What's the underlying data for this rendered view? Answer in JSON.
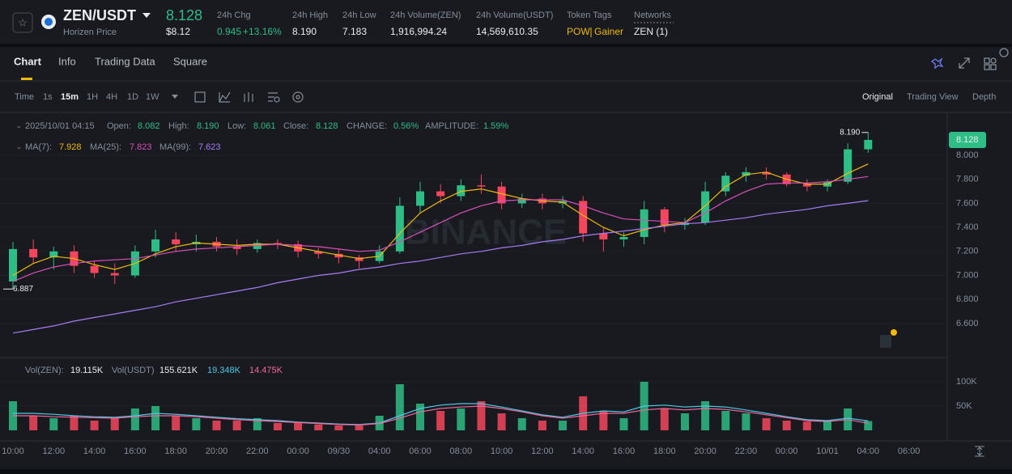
{
  "header": {
    "symbol": "ZEN/USDT",
    "price": "8.128",
    "name": "Horizen Price",
    "price_usd": "$8.12",
    "stats": [
      {
        "label": "24h Chg",
        "value": "0.945",
        "change": "+13.16%"
      },
      {
        "label": "24h High",
        "value": "8.190"
      },
      {
        "label": "24h Low",
        "value": "7.183"
      },
      {
        "label": "24h Volume(ZEN)",
        "value": "1,916,994.24"
      },
      {
        "label": "24h Volume(USDT)",
        "value": "14,569,610.35"
      }
    ],
    "token_tags": {
      "label": "Token Tags",
      "tags": [
        "POW",
        "Gainer"
      ]
    },
    "networks": {
      "label": "Networks",
      "value": "ZEN (1)"
    }
  },
  "tabs": [
    "Chart",
    "Info",
    "Trading Data",
    "Square"
  ],
  "intervals": [
    "Time",
    "1s",
    "15m",
    "1H",
    "4H",
    "1D",
    "1W"
  ],
  "views": [
    "Original",
    "Trading View",
    "Depth"
  ],
  "info": {
    "date": "2025/10/01 04:15",
    "items": [
      {
        "label": "Open:",
        "value": "8.082"
      },
      {
        "label": "High:",
        "value": "8.190"
      },
      {
        "label": "Low:",
        "value": "8.061"
      },
      {
        "label": "Close:",
        "value": "8.128"
      },
      {
        "label": "CHANGE:",
        "value": "0.56%"
      },
      {
        "label": "AMPLITUDE:",
        "value": "1.59%"
      }
    ]
  },
  "chart_data": [
    {
      "type": "candlestick",
      "watermark": "BINANCE",
      "up_color": "#2ebd85",
      "down_color": "#f6465d",
      "current_price_label": "8.128",
      "annotations": [
        "8.190",
        "6.887"
      ],
      "ylim": [
        6.317,
        8.35
      ],
      "yticks": [
        {
          "value": 6.6,
          "label": "6.600"
        },
        {
          "value": 6.8,
          "label": "6.800"
        },
        {
          "value": 7.0,
          "label": "7.000"
        },
        {
          "value": 7.2,
          "label": "7.200"
        },
        {
          "value": 7.4,
          "label": "7.400"
        },
        {
          "value": 7.6,
          "label": "7.600"
        },
        {
          "value": 7.8,
          "label": "7.800"
        },
        {
          "value": 8.0,
          "label": "8.000"
        }
      ],
      "open": [
        6.95,
        7.22,
        7.15,
        7.2,
        7.08,
        7.02,
        7.0,
        7.2,
        7.3,
        7.26,
        7.28,
        7.24,
        7.22,
        7.27,
        7.26,
        7.2,
        7.18,
        7.15,
        7.12,
        7.2,
        7.58,
        7.7,
        7.66,
        7.75,
        7.74,
        7.6,
        7.64,
        7.6,
        7.62,
        7.35,
        7.3,
        7.32,
        7.55,
        7.42,
        7.44,
        7.7,
        7.83,
        7.86,
        7.84,
        7.76,
        7.74,
        7.78,
        8.05,
        null,
        null
      ],
      "high": [
        7.28,
        7.3,
        7.24,
        7.25,
        7.12,
        7.1,
        7.25,
        7.38,
        7.36,
        7.34,
        7.32,
        7.3,
        7.3,
        7.3,
        7.29,
        7.23,
        7.22,
        7.17,
        7.25,
        7.65,
        7.78,
        7.76,
        7.8,
        7.84,
        7.78,
        7.68,
        7.68,
        7.66,
        7.66,
        7.4,
        7.36,
        7.62,
        7.57,
        7.48,
        7.78,
        7.86,
        7.9,
        7.9,
        7.86,
        7.8,
        7.8,
        8.1,
        8.19,
        null,
        null
      ],
      "low": [
        6.887,
        7.1,
        7.05,
        7.02,
        6.98,
        6.93,
        6.98,
        7.15,
        7.2,
        7.2,
        7.2,
        7.17,
        7.19,
        7.22,
        7.15,
        7.14,
        7.1,
        7.06,
        7.1,
        7.18,
        7.52,
        7.6,
        7.62,
        7.68,
        7.55,
        7.56,
        7.55,
        7.56,
        7.28,
        7.2,
        7.24,
        7.26,
        7.36,
        7.38,
        7.42,
        7.66,
        7.78,
        7.8,
        7.74,
        7.7,
        7.7,
        7.76,
        8.02,
        null,
        null
      ],
      "close": [
        7.22,
        7.15,
        7.2,
        7.08,
        7.02,
        7.0,
        7.2,
        7.3,
        7.26,
        7.28,
        7.24,
        7.22,
        7.27,
        7.26,
        7.2,
        7.18,
        7.15,
        7.12,
        7.2,
        7.58,
        7.7,
        7.66,
        7.75,
        7.74,
        7.6,
        7.64,
        7.6,
        7.62,
        7.35,
        7.3,
        7.32,
        7.55,
        7.42,
        7.44,
        7.7,
        7.83,
        7.86,
        7.84,
        7.76,
        7.74,
        7.78,
        8.05,
        8.128,
        null,
        null
      ],
      "series": [
        {
          "name": "MA(7):",
          "color": "#f0b90b",
          "values": [
            7.0,
            7.1,
            7.16,
            7.14,
            7.09,
            7.05,
            7.1,
            7.18,
            7.24,
            7.27,
            7.26,
            7.25,
            7.26,
            7.26,
            7.23,
            7.2,
            7.17,
            7.14,
            7.16,
            7.35,
            7.52,
            7.62,
            7.7,
            7.72,
            7.68,
            7.64,
            7.62,
            7.61,
            7.5,
            7.4,
            7.33,
            7.38,
            7.42,
            7.44,
            7.58,
            7.74,
            7.84,
            7.86,
            7.8,
            7.76,
            7.76,
            7.85,
            7.928,
            null,
            null
          ]
        },
        {
          "name": "MA(25):",
          "color": "#d94fb8",
          "values": [
            6.95,
            7.02,
            7.07,
            7.1,
            7.12,
            7.13,
            7.14,
            7.17,
            7.2,
            7.22,
            7.23,
            7.24,
            7.25,
            7.26,
            7.25,
            7.24,
            7.22,
            7.2,
            7.21,
            7.28,
            7.36,
            7.44,
            7.52,
            7.58,
            7.62,
            7.63,
            7.63,
            7.63,
            7.58,
            7.52,
            7.47,
            7.46,
            7.45,
            7.44,
            7.52,
            7.62,
            7.7,
            7.76,
            7.77,
            7.77,
            7.78,
            7.8,
            7.823,
            null,
            null
          ]
        },
        {
          "name": "MA(99):",
          "color": "#a77cf5",
          "values": [
            6.52,
            6.55,
            6.58,
            6.62,
            6.65,
            6.68,
            6.71,
            6.74,
            6.78,
            6.81,
            6.84,
            6.87,
            6.9,
            6.94,
            6.97,
            7.0,
            7.02,
            7.05,
            7.07,
            7.1,
            7.12,
            7.15,
            7.18,
            7.2,
            7.23,
            7.25,
            7.28,
            7.3,
            7.33,
            7.35,
            7.37,
            7.39,
            7.41,
            7.43,
            7.44,
            7.46,
            7.48,
            7.51,
            7.53,
            7.55,
            7.58,
            7.6,
            7.623,
            null,
            null
          ]
        }
      ]
    },
    {
      "type": "bar",
      "categories": [
        "10:00",
        null,
        "12:00",
        null,
        "14:00",
        null,
        "16:00",
        null,
        "18:00",
        null,
        "20:00",
        null,
        "22:00",
        null,
        "00:00",
        null,
        "09/30",
        null,
        "04:00",
        null,
        "06:00",
        null,
        "08:00",
        null,
        "10:00",
        null,
        "12:00",
        null,
        "14:00",
        null,
        "16:00",
        null,
        "18:00",
        null,
        "20:00",
        null,
        "22:00",
        null,
        "00:00",
        null,
        "10/01",
        null,
        "04:00",
        null,
        "06:00"
      ],
      "legend": [
        {
          "name": "Vol(ZEN):",
          "value": "19.115K"
        },
        {
          "name": "Vol(USDT)",
          "value": "155.621K"
        }
      ],
      "values": [
        60000,
        30000,
        25000,
        30000,
        20000,
        25000,
        45000,
        50000,
        30000,
        25000,
        20000,
        20000,
        25000,
        15000,
        15000,
        12000,
        10000,
        10000,
        30000,
        95000,
        55000,
        40000,
        45000,
        60000,
        35000,
        25000,
        20000,
        20000,
        70000,
        40000,
        25000,
        100000,
        45000,
        35000,
        60000,
        40000,
        35000,
        25000,
        20000,
        18000,
        20000,
        45000,
        19115,
        null,
        null
      ],
      "ylim": [
        0,
        150000
      ],
      "yticks": [
        {
          "value": 50000,
          "label": "50K"
        },
        {
          "value": 100000,
          "label": "100K"
        }
      ],
      "series": [
        {
          "color": "#4cc9e6",
          "value_label": "19.348K",
          "values": [
            35000,
            35000,
            33000,
            30000,
            28000,
            27000,
            30000,
            35000,
            33000,
            30000,
            27000,
            24000,
            22000,
            20000,
            17000,
            15000,
            13000,
            12000,
            15000,
            30000,
            45000,
            52000,
            55000,
            55000,
            48000,
            40000,
            32000,
            27000,
            35000,
            40000,
            38000,
            50000,
            52000,
            48000,
            50000,
            48000,
            42000,
            35000,
            28000,
            22000,
            20000,
            25000,
            19348,
            null,
            null
          ]
        },
        {
          "color": "#f0699b",
          "value_label": "14.475K",
          "values": [
            30000,
            30000,
            28000,
            27000,
            26000,
            25000,
            28000,
            30000,
            30000,
            28000,
            25000,
            22000,
            20000,
            18000,
            16000,
            14000,
            12000,
            11000,
            14000,
            25000,
            38000,
            45000,
            48000,
            50000,
            45000,
            38000,
            30000,
            25000,
            30000,
            35000,
            35000,
            42000,
            45000,
            42000,
            45000,
            43000,
            38000,
            32000,
            26000,
            20000,
            18000,
            22000,
            14475,
            null,
            null
          ]
        }
      ]
    }
  ]
}
